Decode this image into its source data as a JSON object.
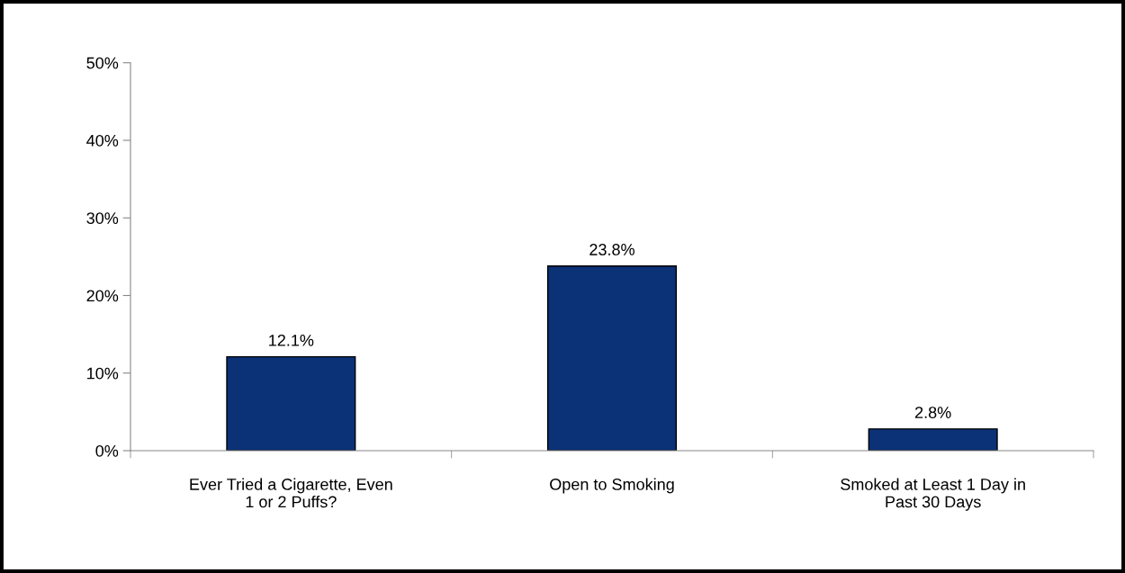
{
  "chart_data": {
    "type": "bar",
    "categories": [
      "Ever Tried a Cigarette, Even\n1 or 2 Puffs?",
      "Open to Smoking",
      "Smoked at Least 1 Day in\nPast 30 Days"
    ],
    "values": [
      12.1,
      23.8,
      2.8
    ],
    "value_labels": [
      "12.1%",
      "23.8%",
      "2.8%"
    ],
    "color": "#0b3277",
    "ylim": [
      0,
      50
    ],
    "yticks": [
      {
        "value": 0,
        "label": "0%"
      },
      {
        "value": 10,
        "label": "10%"
      },
      {
        "value": 20,
        "label": "20%"
      },
      {
        "value": 30,
        "label": "30%"
      },
      {
        "value": 40,
        "label": "40%"
      },
      {
        "value": 50,
        "label": "50%"
      }
    ],
    "grid": false,
    "legend": false
  }
}
